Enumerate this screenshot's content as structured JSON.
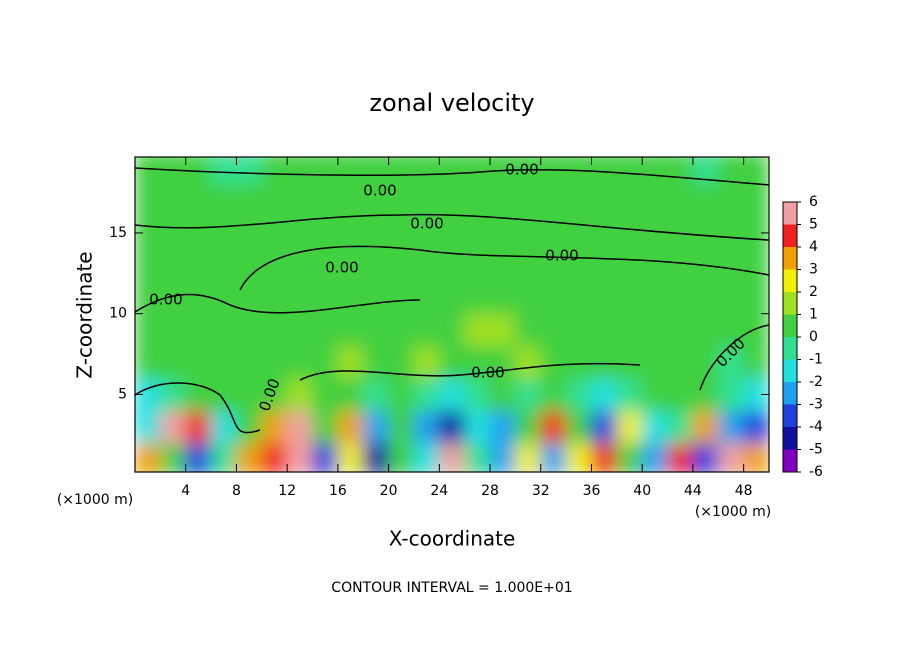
{
  "chart_data": {
    "type": "contour",
    "title": "zonal velocity",
    "x_label": "X-coordinate",
    "y_label": "Z-coordinate",
    "x_unit": "(×1000 m)",
    "x_unit_right": "(×1000 m)",
    "footnote": "CONTOUR INTERVAL = 1.000E+01",
    "contour_labels": [
      "0.00",
      "0.00",
      "0.00",
      "0.00",
      "0.00",
      "0.00",
      "0.00",
      "0.00",
      "0.00"
    ],
    "xlim": [
      0,
      50
    ],
    "ylim": [
      0.2,
      19.7
    ],
    "xticks": [
      4,
      8,
      12,
      16,
      20,
      24,
      28,
      32,
      36,
      40,
      44,
      48
    ],
    "yticks": [
      5,
      10,
      15
    ],
    "x": [
      1,
      3,
      5,
      7,
      9,
      11,
      13,
      15,
      17,
      19,
      21,
      23,
      25,
      27,
      29,
      31,
      33,
      35,
      37,
      39,
      41,
      43,
      45,
      47,
      49
    ],
    "z": [
      1,
      3,
      5,
      7,
      9,
      11,
      13,
      15,
      17,
      19
    ],
    "values": [
      [
        3,
        0,
        -4,
        -1,
        3,
        4,
        5,
        -4,
        2,
        -5,
        0,
        -2,
        5,
        -1,
        -3,
        2,
        -3,
        2,
        4,
        0,
        -3,
        4,
        -4,
        6,
        3
      ],
      [
        -2,
        5,
        4,
        -2,
        0,
        3,
        5,
        0,
        3,
        -3,
        0.5,
        -3,
        -5,
        -2,
        -3,
        0,
        4,
        0,
        -4,
        2,
        -2,
        -1,
        3,
        -3,
        -4
      ],
      [
        -2,
        -1,
        0,
        0.5,
        0,
        0.5,
        1.5,
        0.5,
        0,
        -1,
        0,
        -1,
        -2,
        -1,
        0.5,
        -1,
        0,
        -1,
        -2,
        -1,
        0,
        0.5,
        0,
        -1,
        -2
      ],
      [
        0,
        0.5,
        0.5,
        0.5,
        0,
        0.5,
        0.5,
        0.5,
        1.5,
        0.5,
        0.5,
        1.5,
        0.5,
        0.5,
        0.5,
        1.5,
        0.5,
        0.5,
        0.5,
        0.5,
        0.5,
        0,
        0,
        -1,
        0
      ],
      [
        0,
        0.5,
        0.5,
        0,
        0.5,
        0.5,
        0.5,
        0.5,
        0.5,
        0.5,
        0.5,
        0.5,
        0.5,
        1.5,
        1.5,
        0.5,
        0.5,
        0.5,
        0.5,
        0.5,
        0.5,
        0.5,
        0.5,
        0,
        0
      ],
      [
        0,
        0,
        0.5,
        0.5,
        0,
        0,
        0.5,
        0.5,
        0.5,
        0.5,
        0.5,
        0,
        0.5,
        0.5,
        0.5,
        0.5,
        0.5,
        0.5,
        0.5,
        0.5,
        0.5,
        0.5,
        0.5,
        0.5,
        0.5
      ],
      [
        0.5,
        0.5,
        0.5,
        0.5,
        0.5,
        0.5,
        0,
        0,
        0.5,
        0.5,
        0.5,
        0.5,
        0.5,
        0.5,
        0.5,
        0.5,
        0.5,
        0.5,
        0.5,
        0.5,
        0.5,
        0.5,
        0.5,
        0.5,
        0.5
      ],
      [
        0.5,
        0.5,
        0,
        0,
        0.5,
        0.5,
        0.5,
        0.5,
        0.5,
        0,
        0.5,
        0.5,
        0.5,
        0.5,
        0.5,
        0.5,
        0,
        0.5,
        0.5,
        0.5,
        0.5,
        0.5,
        0.5,
        0.5,
        0.5
      ],
      [
        0.5,
        0.5,
        0.5,
        0.5,
        0.5,
        0.5,
        0.5,
        0.5,
        0.5,
        0.5,
        0.5,
        0.5,
        0.5,
        0,
        0,
        0.5,
        0.5,
        0.5,
        0.5,
        0.5,
        0.5,
        0.5,
        0,
        0,
        0.5
      ],
      [
        0,
        0,
        0.5,
        -1,
        -1,
        0,
        0.5,
        0.5,
        0.5,
        0.5,
        0.5,
        0.5,
        0,
        0,
        0.5,
        0.5,
        0.5,
        0.5,
        0.5,
        0.5,
        0.5,
        0,
        -1,
        0,
        0.5
      ]
    ],
    "clim": [
      -6,
      6
    ],
    "cticks": [
      -6,
      -5,
      -4,
      -3,
      -2,
      -1,
      0,
      1,
      2,
      3,
      4,
      5,
      6
    ],
    "colors": [
      "#8000c0",
      "#1010a0",
      "#2040e0",
      "#20a0f0",
      "#20e0e0",
      "#30e090",
      "#40d040",
      "#a0e020",
      "#f0f000",
      "#f0a000",
      "#f02020",
      "#f0a0a0"
    ]
  }
}
